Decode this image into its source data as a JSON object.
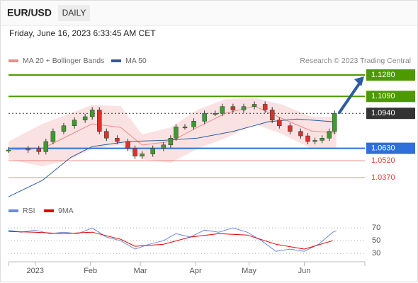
{
  "header": {
    "symbol": "EUR/USD",
    "period": "DAILY",
    "date": "Friday, June 16, 2023 6:33:45 AM CET",
    "source": "Research © 2023 Trading Central"
  },
  "chart_data": [
    {
      "type": "candlestick",
      "candles": {
        "x": [
          -15,
          -4,
          2,
          6,
          10,
          16,
          22,
          28,
          32,
          36,
          40,
          46,
          52,
          56,
          60,
          66,
          72,
          76,
          79,
          84,
          89,
          95,
          101,
          105,
          111,
          117,
          123,
          129,
          133,
          137,
          143,
          149,
          153,
          157,
          161,
          165,
          168
        ],
        "values": [
          1.0615,
          1.0627,
          1.06,
          1.069,
          1.078,
          1.083,
          1.088,
          1.091,
          1.097,
          1.078,
          1.072,
          1.069,
          1.063,
          1.056,
          1.058,
          1.063,
          1.066,
          1.072,
          1.082,
          1.082,
          1.087,
          1.094,
          1.094,
          1.1,
          1.097,
          1.1,
          1.102,
          1.097,
          1.088,
          1.083,
          1.078,
          1.074,
          1.069,
          1.07,
          1.072,
          1.078,
          1.094
        ],
        "up_color": "#3f9a2f",
        "down_color": "#d9322b"
      },
      "series": [
        {
          "name": "MA 20 + Bollinger Bands",
          "color": "#f08a8a",
          "x": [
            -15,
            4,
            20,
            32,
            48,
            60,
            76,
            91,
            107,
            123,
            139,
            155,
            169
          ],
          "values": [
            1.0615,
            1.0627,
            1.0753,
            1.0847,
            1.0815,
            1.0659,
            1.069,
            1.0815,
            1.0941,
            1.1004,
            1.0891,
            1.0784,
            1.0765
          ],
          "upper": [
            1.069,
            1.0847,
            1.0941,
            1.1016,
            1.1004,
            1.0753,
            1.0815,
            1.0972,
            1.1067,
            1.1079,
            1.1016,
            1.091,
            1.091
          ],
          "lower": [
            1.0533,
            1.047,
            1.0533,
            1.0627,
            1.0659,
            1.0533,
            1.0502,
            1.0627,
            1.0721,
            1.0847,
            1.0753,
            1.0627,
            1.0627
          ]
        },
        {
          "name": "MA 50",
          "color": "#2d5b9e",
          "x": [
            -15,
            4,
            20,
            32,
            52,
            72,
            91,
            111,
            131,
            147,
            167
          ],
          "values": [
            1.02,
            1.0345,
            1.055,
            1.0646,
            1.069,
            1.07,
            1.072,
            1.078,
            1.0866,
            1.089,
            1.0866
          ]
        }
      ],
      "levels": [
        {
          "value": 1.128,
          "label": "1.1280",
          "color": "#4c9a00",
          "boxed": true
        },
        {
          "value": 1.109,
          "label": "1.1090",
          "color": "#4c9a00",
          "boxed": true
        },
        {
          "value": 1.094,
          "label": "1.0940",
          "color": "#333333",
          "boxed": true
        },
        {
          "value": 1.063,
          "label": "1.0630",
          "color": "#2e6fdc",
          "boxed": true
        },
        {
          "value": 1.052,
          "label": "1.0520",
          "color": "#e03c31",
          "boxed": false
        },
        {
          "value": 1.037,
          "label": "1.0370",
          "color": "#e03c31",
          "boxed": false
        }
      ],
      "xlim": [
        -15,
        185
      ],
      "ylim": [
        1.0157,
        1.1349
      ]
    },
    {
      "type": "line",
      "series": [
        {
          "name": "RSI",
          "color": "#6a8be0",
          "x": [
            -15,
            -8,
            0,
            8,
            16,
            24,
            32,
            40,
            48,
            56,
            64,
            72,
            79,
            87,
            95,
            103,
            111,
            119,
            127,
            135,
            143,
            151,
            159,
            167,
            169
          ],
          "values": [
            66.7,
            63.3,
            66.7,
            61.1,
            63.3,
            61.1,
            70,
            55.6,
            50,
            36.7,
            44.4,
            50,
            61.1,
            55.6,
            66.7,
            63.3,
            70,
            63.3,
            50,
            33.3,
            36.7,
            33.3,
            44.4,
            63.3,
            65.6
          ]
        },
        {
          "name": "9MA",
          "color": "#e00000",
          "x": [
            -15,
            0,
            16,
            32,
            48,
            56,
            72,
            87,
            103,
            119,
            135,
            151,
            167
          ],
          "values": [
            64.4,
            63.3,
            61.1,
            63.3,
            52.2,
            41.1,
            44.4,
            55.6,
            61.1,
            58.9,
            44.4,
            36.7,
            50
          ]
        }
      ],
      "xlim": [
        -15,
        185
      ],
      "ylim": [
        19,
        78
      ],
      "yticks": [
        70,
        50,
        30
      ],
      "xticks": [
        {
          "value": 0,
          "label": "2023"
        },
        {
          "value": 31,
          "label": "Feb"
        },
        {
          "value": 59,
          "label": "Mar"
        },
        {
          "value": 90,
          "label": "Apr"
        },
        {
          "value": 120,
          "label": "May"
        },
        {
          "value": 151,
          "label": "Jun"
        }
      ]
    }
  ]
}
